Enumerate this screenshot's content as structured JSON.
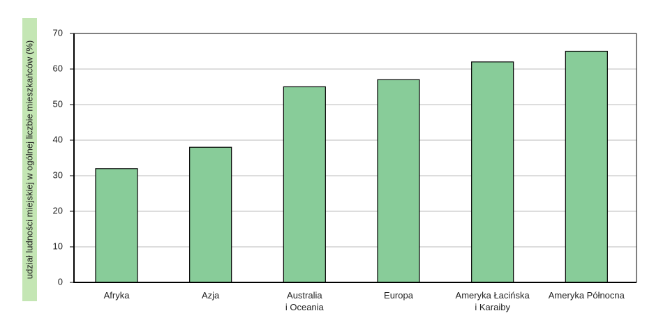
{
  "chart_data": {
    "type": "bar",
    "y_label": "udział ludności miejskiej w ogólnej liczbie mieszkańców (%)",
    "categories": [
      "Afryka",
      "Azja",
      "Australia\ni Oceania",
      "Europa",
      "Ameryka Łacińska\ni Karaiby",
      "Ameryka Północna"
    ],
    "values": [
      32,
      38,
      55,
      57,
      62,
      65
    ],
    "color": "#88cc99",
    "ylim": [
      0,
      70
    ],
    "yticks": [
      0,
      10,
      20,
      30,
      40,
      50,
      60,
      70
    ],
    "grid": true
  }
}
